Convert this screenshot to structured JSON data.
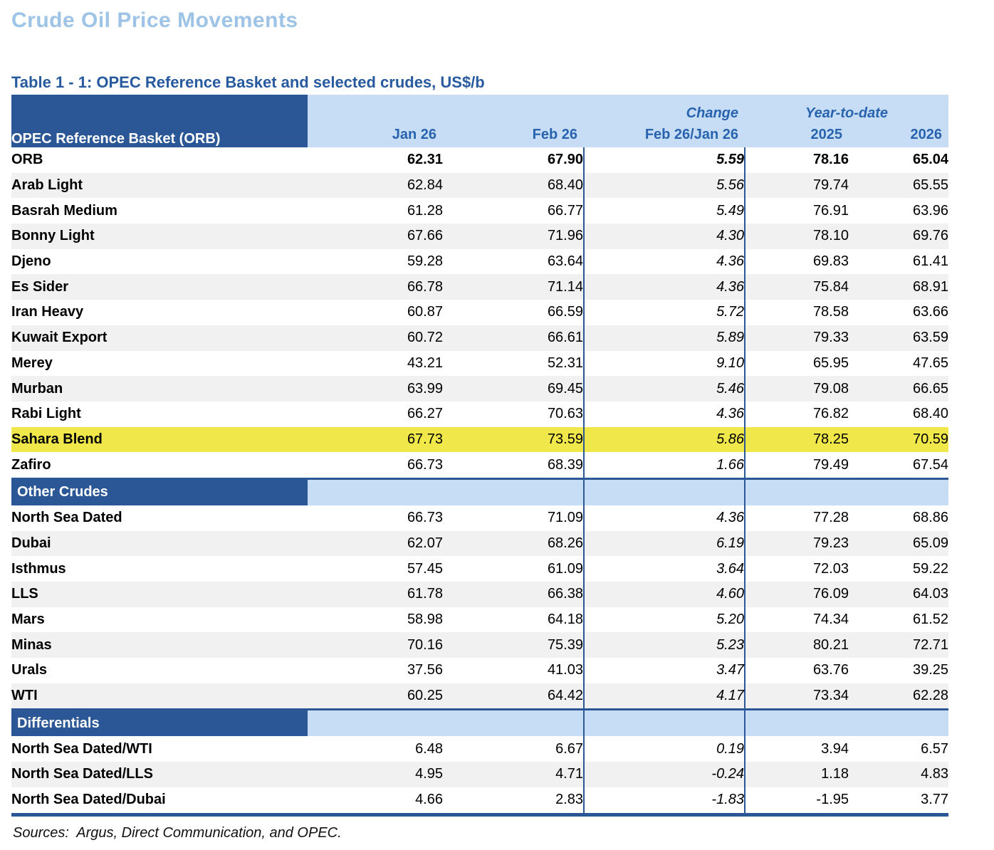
{
  "page": {
    "title": "Crude Oil Price Movements",
    "table_title": "Table 1 - 1: OPEC Reference Basket and selected crudes, US$/b",
    "sources": "Sources:  Argus, Direct Communication, and OPEC."
  },
  "table": {
    "corner_label": "OPEC Reference Basket (ORB)",
    "group_headers": {
      "change": "Change",
      "ytd": "Year-to-date"
    },
    "columns": [
      "Jan 26",
      "Feb 26",
      "Feb 26/Jan 26",
      "2025",
      "2026"
    ],
    "sections": [
      {
        "title": null,
        "rows": [
          {
            "label": "ORB",
            "values": [
              "62.31",
              "67.90",
              "5.59",
              "78.16",
              "65.04"
            ],
            "bold": true
          },
          {
            "label": "Arab Light",
            "values": [
              "62.84",
              "68.40",
              "5.56",
              "79.74",
              "65.55"
            ]
          },
          {
            "label": "Basrah Medium",
            "values": [
              "61.28",
              "66.77",
              "5.49",
              "76.91",
              "63.96"
            ]
          },
          {
            "label": "Bonny Light",
            "values": [
              "67.66",
              "71.96",
              "4.30",
              "78.10",
              "69.76"
            ]
          },
          {
            "label": "Djeno",
            "values": [
              "59.28",
              "63.64",
              "4.36",
              "69.83",
              "61.41"
            ]
          },
          {
            "label": "Es Sider",
            "values": [
              "66.78",
              "71.14",
              "4.36",
              "75.84",
              "68.91"
            ]
          },
          {
            "label": "Iran Heavy",
            "values": [
              "60.87",
              "66.59",
              "5.72",
              "78.58",
              "63.66"
            ]
          },
          {
            "label": "Kuwait Export",
            "values": [
              "60.72",
              "66.61",
              "5.89",
              "79.33",
              "63.59"
            ]
          },
          {
            "label": "Merey",
            "values": [
              "43.21",
              "52.31",
              "9.10",
              "65.95",
              "47.65"
            ]
          },
          {
            "label": "Murban",
            "values": [
              "63.99",
              "69.45",
              "5.46",
              "79.08",
              "66.65"
            ]
          },
          {
            "label": "Rabi Light",
            "values": [
              "66.27",
              "70.63",
              "4.36",
              "76.82",
              "68.40"
            ]
          },
          {
            "label": "Sahara Blend",
            "values": [
              "67.73",
              "73.59",
              "5.86",
              "78.25",
              "70.59"
            ],
            "highlight": true
          },
          {
            "label": "Zafiro",
            "values": [
              "66.73",
              "68.39",
              "1.66",
              "79.49",
              "67.54"
            ]
          }
        ]
      },
      {
        "title": "Other Crudes",
        "rows": [
          {
            "label": "North Sea Dated",
            "values": [
              "66.73",
              "71.09",
              "4.36",
              "77.28",
              "68.86"
            ]
          },
          {
            "label": "Dubai",
            "values": [
              "62.07",
              "68.26",
              "6.19",
              "79.23",
              "65.09"
            ]
          },
          {
            "label": "Isthmus",
            "values": [
              "57.45",
              "61.09",
              "3.64",
              "72.03",
              "59.22"
            ]
          },
          {
            "label": "LLS",
            "values": [
              "61.78",
              "66.38",
              "4.60",
              "76.09",
              "64.03"
            ]
          },
          {
            "label": "Mars",
            "values": [
              "58.98",
              "64.18",
              "5.20",
              "74.34",
              "61.52"
            ]
          },
          {
            "label": "Minas",
            "values": [
              "70.16",
              "75.39",
              "5.23",
              "80.21",
              "72.71"
            ]
          },
          {
            "label": "Urals",
            "values": [
              "37.56",
              "41.03",
              "3.47",
              "63.76",
              "39.25"
            ]
          },
          {
            "label": "WTI",
            "values": [
              "60.25",
              "64.42",
              "4.17",
              "73.34",
              "62.28"
            ]
          }
        ]
      },
      {
        "title": "Differentials",
        "rows": [
          {
            "label": "North Sea Dated/WTI",
            "values": [
              "6.48",
              "6.67",
              "0.19",
              "3.94",
              "6.57"
            ]
          },
          {
            "label": "North Sea Dated/LLS",
            "values": [
              "4.95",
              "4.71",
              "-0.24",
              "1.18",
              "4.83"
            ]
          },
          {
            "label": "North Sea Dated/Dubai",
            "values": [
              "4.66",
              "2.83",
              "-1.83",
              "-1.95",
              "3.77"
            ]
          }
        ]
      }
    ]
  },
  "colors": {
    "dark_blue": "#2B5796",
    "light_blue": "#C7DDF6",
    "stripe_gray": "#F1F1F1",
    "highlight_yellow": "#F0E74A",
    "page_title_blue": "#9DC3E6",
    "header_text_blue": "#2763AE"
  }
}
